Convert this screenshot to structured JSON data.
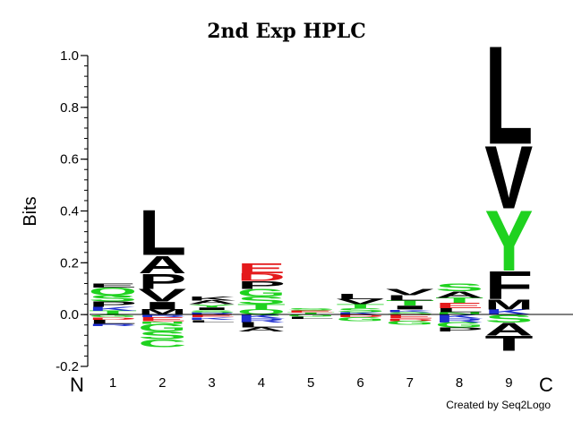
{
  "chart_data": {
    "type": "sequence-logo",
    "title": "2nd Exp HPLC",
    "ylabel": "Bits",
    "ylim": [
      -0.2,
      1.0
    ],
    "y_ticks": [
      1.0,
      0.8,
      0.6,
      0.4,
      0.2,
      0.0,
      -0.2
    ],
    "y_tick_labels": [
      "1.0",
      "0.8",
      "0.6",
      "0.4",
      "0.2",
      "0.0",
      "-0.2"
    ],
    "n_terminus_label": "N",
    "c_terminus_label": "C",
    "credit": "Created by Seq2Logo",
    "colors": {
      "black": "#000000",
      "green": "#1fd21f",
      "red": "#e41a1c",
      "blue": "#1f2fd0"
    },
    "positions": [
      {
        "label": "1",
        "positive": [
          {
            "letter": "E",
            "height": 0.015,
            "color": "black"
          },
          {
            "letter": "Q",
            "height": 0.03,
            "color": "green"
          },
          {
            "letter": "S",
            "height": 0.025,
            "color": "green"
          },
          {
            "letter": "P",
            "height": 0.02,
            "color": "black"
          },
          {
            "letter": "K",
            "height": 0.015,
            "color": "blue"
          },
          {
            "letter": "T",
            "height": 0.015,
            "color": "green"
          }
        ],
        "negative": [
          {
            "letter": "G",
            "height": 0.01,
            "color": "green"
          },
          {
            "letter": "D",
            "height": 0.01,
            "color": "red"
          },
          {
            "letter": "L",
            "height": 0.015,
            "color": "black"
          },
          {
            "letter": "R",
            "height": 0.01,
            "color": "blue"
          }
        ]
      },
      {
        "label": "2",
        "positive": [
          {
            "letter": "L",
            "height": 0.18,
            "color": "black"
          },
          {
            "letter": "A",
            "height": 0.07,
            "color": "black"
          },
          {
            "letter": "P",
            "height": 0.06,
            "color": "black"
          },
          {
            "letter": "V",
            "height": 0.05,
            "color": "black"
          },
          {
            "letter": "I",
            "height": 0.03,
            "color": "black"
          },
          {
            "letter": "M",
            "height": 0.02,
            "color": "black"
          }
        ],
        "negative": [
          {
            "letter": "R",
            "height": 0.01,
            "color": "blue"
          },
          {
            "letter": "E",
            "height": 0.015,
            "color": "red"
          },
          {
            "letter": "N",
            "height": 0.01,
            "color": "green"
          },
          {
            "letter": "G",
            "height": 0.03,
            "color": "green"
          },
          {
            "letter": "S",
            "height": 0.03,
            "color": "green"
          },
          {
            "letter": "C",
            "height": 0.03,
            "color": "green"
          }
        ]
      },
      {
        "label": "3",
        "positive": [
          {
            "letter": "K",
            "height": 0.015,
            "color": "black"
          },
          {
            "letter": "A",
            "height": 0.015,
            "color": "black"
          },
          {
            "letter": "Y",
            "height": 0.012,
            "color": "green"
          },
          {
            "letter": "I",
            "height": 0.01,
            "color": "black"
          },
          {
            "letter": "S",
            "height": 0.01,
            "color": "green"
          },
          {
            "letter": "R",
            "height": 0.008,
            "color": "blue"
          }
        ],
        "negative": [
          {
            "letter": "E",
            "height": 0.01,
            "color": "red"
          },
          {
            "letter": "K",
            "height": 0.01,
            "color": "blue"
          },
          {
            "letter": "L",
            "height": 0.01,
            "color": "black"
          }
        ]
      },
      {
        "label": "4",
        "positive": [
          {
            "letter": "E",
            "height": 0.04,
            "color": "red"
          },
          {
            "letter": "D",
            "height": 0.03,
            "color": "red"
          },
          {
            "letter": "P",
            "height": 0.03,
            "color": "black"
          },
          {
            "letter": "G",
            "height": 0.03,
            "color": "green"
          },
          {
            "letter": "S",
            "height": 0.03,
            "color": "green"
          },
          {
            "letter": "T",
            "height": 0.02,
            "color": "green"
          },
          {
            "letter": "Q",
            "height": 0.02,
            "color": "green"
          }
        ],
        "negative": [
          {
            "letter": "K",
            "height": 0.015,
            "color": "blue"
          },
          {
            "letter": "R",
            "height": 0.015,
            "color": "blue"
          },
          {
            "letter": "L",
            "height": 0.02,
            "color": "black"
          },
          {
            "letter": "A",
            "height": 0.015,
            "color": "black"
          }
        ]
      },
      {
        "label": "5",
        "positive": [
          {
            "letter": "S",
            "height": 0.01,
            "color": "green"
          },
          {
            "letter": "E",
            "height": 0.008,
            "color": "red"
          },
          {
            "letter": "T",
            "height": 0.008,
            "color": "green"
          }
        ],
        "negative": [
          {
            "letter": "G",
            "height": 0.008,
            "color": "green"
          },
          {
            "letter": "L",
            "height": 0.008,
            "color": "black"
          }
        ]
      },
      {
        "label": "6",
        "positive": [
          {
            "letter": "L",
            "height": 0.02,
            "color": "black"
          },
          {
            "letter": "V",
            "height": 0.02,
            "color": "black"
          },
          {
            "letter": "T",
            "height": 0.015,
            "color": "green"
          },
          {
            "letter": "S",
            "height": 0.015,
            "color": "green"
          },
          {
            "letter": "K",
            "height": 0.01,
            "color": "blue"
          }
        ],
        "negative": [
          {
            "letter": "D",
            "height": 0.01,
            "color": "red"
          },
          {
            "letter": "G",
            "height": 0.015,
            "color": "green"
          }
        ]
      },
      {
        "label": "7",
        "positive": [
          {
            "letter": "V",
            "height": 0.025,
            "color": "black"
          },
          {
            "letter": "L",
            "height": 0.02,
            "color": "black"
          },
          {
            "letter": "T",
            "height": 0.02,
            "color": "green"
          },
          {
            "letter": "I",
            "height": 0.015,
            "color": "black"
          },
          {
            "letter": "K",
            "height": 0.01,
            "color": "blue"
          },
          {
            "letter": "S",
            "height": 0.01,
            "color": "green"
          }
        ],
        "negative": [
          {
            "letter": "E",
            "height": 0.015,
            "color": "red"
          },
          {
            "letter": "D",
            "height": 0.01,
            "color": "red"
          },
          {
            "letter": "G",
            "height": 0.015,
            "color": "green"
          }
        ]
      },
      {
        "label": "8",
        "positive": [
          {
            "letter": "S",
            "height": 0.03,
            "color": "green"
          },
          {
            "letter": "A",
            "height": 0.025,
            "color": "black"
          },
          {
            "letter": "T",
            "height": 0.02,
            "color": "green"
          },
          {
            "letter": "E",
            "height": 0.02,
            "color": "red"
          },
          {
            "letter": "L",
            "height": 0.015,
            "color": "black"
          },
          {
            "letter": "N",
            "height": 0.01,
            "color": "green"
          }
        ],
        "negative": [
          {
            "letter": "K",
            "height": 0.015,
            "color": "blue"
          },
          {
            "letter": "R",
            "height": 0.015,
            "color": "blue"
          },
          {
            "letter": "G",
            "height": 0.02,
            "color": "green"
          },
          {
            "letter": "P",
            "height": 0.015,
            "color": "black"
          }
        ]
      },
      {
        "label": "9",
        "positive": [
          {
            "letter": "L",
            "height": 0.39,
            "color": "black"
          },
          {
            "letter": "V",
            "height": 0.25,
            "color": "black"
          },
          {
            "letter": "Y",
            "height": 0.24,
            "color": "green"
          },
          {
            "letter": "F",
            "height": 0.11,
            "color": "black"
          },
          {
            "letter": "M",
            "height": 0.04,
            "color": "black"
          },
          {
            "letter": "K",
            "height": 0.02,
            "color": "blue"
          }
        ],
        "negative": [
          {
            "letter": "S",
            "height": 0.03,
            "color": "green"
          },
          {
            "letter": "A",
            "height": 0.05,
            "color": "black"
          },
          {
            "letter": "T",
            "height": 0.06,
            "color": "black"
          }
        ]
      }
    ]
  }
}
